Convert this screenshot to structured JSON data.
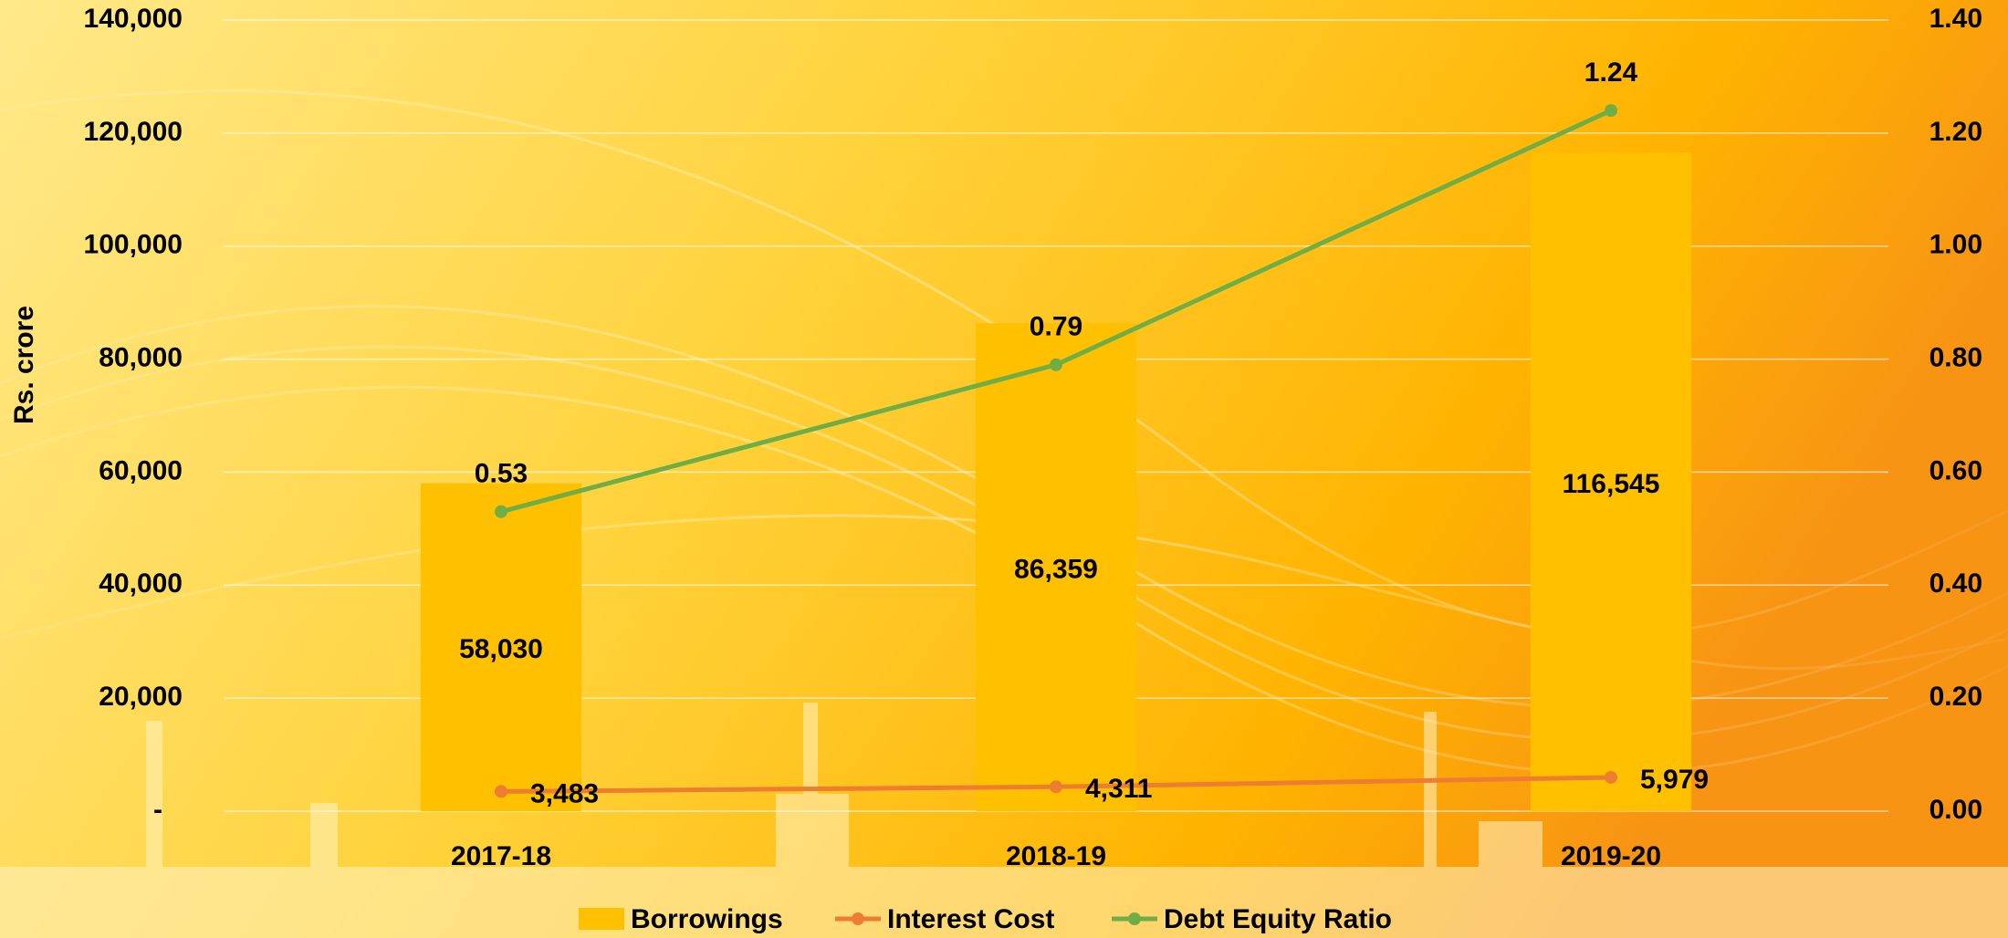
{
  "chart_data": {
    "type": "combo",
    "y_axis_label": "Rs. crore",
    "categories": [
      "2017-18",
      "2018-19",
      "2019-20"
    ],
    "series": [
      {
        "name": "Borrowings",
        "type": "bar",
        "color": "#FFC000",
        "values": [
          58030,
          86359,
          116545
        ],
        "value_labels": [
          "58,030",
          "86,359",
          "116,545"
        ]
      },
      {
        "name": "Interest Cost",
        "type": "line",
        "color": "#ED7D31",
        "values": [
          3483,
          4311,
          5979
        ],
        "value_labels": [
          "3,483",
          "4,311",
          "5,979"
        ]
      },
      {
        "name": "Debt Equity Ratio",
        "type": "line",
        "axis": "y2",
        "color": "#70AD47",
        "values": [
          0.53,
          0.79,
          1.24
        ]
      }
    ],
    "ylim": [
      0,
      140000
    ],
    "yticks": [
      {
        "value": 0,
        "label": "-"
      },
      {
        "value": 20000,
        "label": "20,000"
      },
      {
        "value": 40000,
        "label": "40,000"
      },
      {
        "value": 60000,
        "label": "60,000"
      },
      {
        "value": 80000,
        "label": "80,000"
      },
      {
        "value": 100000,
        "label": "100,000"
      },
      {
        "value": 120000,
        "label": "120,000"
      },
      {
        "value": 140000,
        "label": "140,000"
      }
    ],
    "y2lim": [
      0,
      1.4
    ],
    "y2ticks": [
      {
        "value": 0,
        "label": "0.00"
      },
      {
        "value": 0.2,
        "label": "0.20"
      },
      {
        "value": 0.4,
        "label": "0.40"
      },
      {
        "value": 0.6,
        "label": "0.60"
      },
      {
        "value": 0.8,
        "label": "0.80"
      },
      {
        "value": 1.0,
        "label": "1.00"
      },
      {
        "value": 1.2,
        "label": "1.20"
      },
      {
        "value": 1.4,
        "label": "1.40"
      }
    ],
    "grid": true,
    "legend": "bottom"
  }
}
